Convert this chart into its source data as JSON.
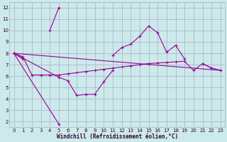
{
  "background_color": "#cceaea",
  "grid_color": "#aaaacc",
  "line_color": "#990099",
  "xlabel": "Windchill (Refroidissement éolien,°C)",
  "xlim": [
    -0.5,
    23.5
  ],
  "ylim": [
    1.5,
    12.5
  ],
  "xticks": [
    0,
    1,
    2,
    3,
    4,
    5,
    6,
    7,
    8,
    9,
    10,
    11,
    12,
    13,
    14,
    15,
    16,
    17,
    18,
    19,
    20,
    21,
    22,
    23
  ],
  "yticks": [
    2,
    3,
    4,
    5,
    6,
    7,
    8,
    9,
    10,
    11,
    12
  ],
  "series1_x": [
    0,
    1,
    4,
    5,
    11,
    12,
    13,
    14,
    15,
    16,
    17,
    18,
    19,
    21,
    22,
    23
  ],
  "series1_y": [
    8.0,
    7.5,
    10.0,
    12.0,
    7.8,
    8.5,
    8.8,
    9.5,
    10.4,
    9.8,
    8.1,
    8.7,
    7.5,
    7.1,
    6.7,
    6.5
  ],
  "series1_connected": [
    [
      0,
      1
    ],
    [
      4,
      5
    ],
    [
      11,
      12,
      13,
      14,
      15,
      16,
      17,
      18,
      19
    ],
    [
      21,
      22,
      23
    ]
  ],
  "series2_x": [
    0,
    5,
    6,
    7,
    8,
    9,
    10,
    11
  ],
  "series2_y": [
    8.0,
    5.9,
    5.6,
    4.3,
    4.4,
    4.4,
    5.5,
    6.5
  ],
  "series2_connected": [
    [
      0,
      5,
      6,
      7,
      8,
      9,
      10,
      11
    ]
  ],
  "series3_x": [
    0,
    5
  ],
  "series3_y": [
    8.0,
    1.8
  ],
  "series4_x": [
    0,
    1,
    2,
    3,
    4,
    5,
    6,
    7,
    8,
    9,
    10,
    11,
    12,
    13,
    14,
    15,
    16,
    17,
    18,
    19,
    20,
    21,
    22,
    23
  ],
  "series4_y": [
    8.0,
    7.7,
    6.1,
    6.1,
    6.1,
    6.1,
    6.2,
    6.3,
    6.4,
    6.5,
    6.6,
    6.7,
    6.8,
    6.9,
    7.0,
    7.1,
    7.15,
    7.2,
    7.25,
    7.3,
    6.5,
    7.1,
    6.7,
    6.5
  ],
  "series5_x": [
    0,
    23
  ],
  "series5_y": [
    8.0,
    6.5
  ]
}
